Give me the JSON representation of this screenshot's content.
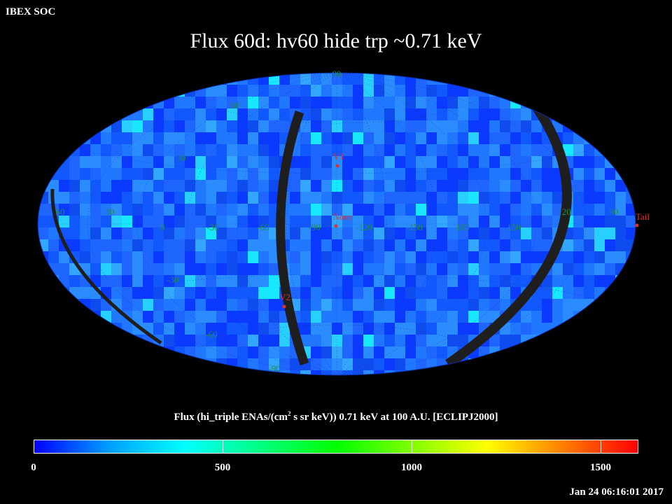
{
  "header": {
    "org": "IBEX SOC",
    "title": "Flux   60d: hv60 hide trp ~0.71 keV"
  },
  "colorbar": {
    "title_prefix": "Flux (hi_triple ENAs/(cm",
    "title_sup": "2",
    "title_suffix": " s sr keV))  0.71 keV at 100 A.U. [ECLIPJ2000]",
    "min": 0,
    "max": 1600,
    "ticks": [
      "0",
      "500",
      "1000",
      "1500"
    ],
    "colors": [
      "#0000ff",
      "#00a0ff",
      "#00ffff",
      "#00ff80",
      "#00ff00",
      "#80ff00",
      "#ffff00",
      "#ff8000",
      "#ff0000"
    ]
  },
  "map": {
    "projection": "Aitoff (ecliptic longitude/latitude)",
    "background_colors": [
      "#0a3aff",
      "#1258ff",
      "#1f78ff",
      "#2b8cff",
      "#1e66ff",
      "#0f4cf0",
      "#33a6ff",
      "#28d0ff",
      "#18e8ff"
    ],
    "gap_color": "#1e1e1e",
    "grid_label_color": "#1f8f3f",
    "marker_color": "#e03030",
    "lat_labels": [
      {
        "text": "90",
        "lat": 90
      },
      {
        "text": "60",
        "lat": 60
      },
      {
        "text": "30",
        "lat": 30
      },
      {
        "text": "-30",
        "lat": -30
      },
      {
        "text": "-60",
        "lat": -60
      },
      {
        "text": "-90",
        "lat": -90
      }
    ],
    "lon_labels": [
      "60",
      "30",
      "0",
      "-30",
      "-60",
      "-90",
      "-120",
      "-150",
      "180",
      "150",
      "120",
      "90"
    ],
    "markers": [
      {
        "label": "V1",
        "lon": 255,
        "lat": 35
      },
      {
        "label": "Nose",
        "lon": 255,
        "lat": 5
      },
      {
        "label": "V2",
        "lon": 289,
        "lat": -32
      },
      {
        "label": "Tail",
        "lon": 75,
        "lat": -5
      }
    ]
  },
  "footer": {
    "timestamp": "Jan 24 06:16:01 2017"
  }
}
